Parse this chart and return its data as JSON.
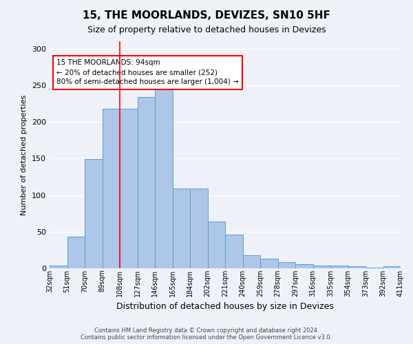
{
  "title": "15, THE MOORLANDS, DEVIZES, SN10 5HF",
  "subtitle": "Size of property relative to detached houses in Devizes",
  "xlabel": "Distribution of detached houses by size in Devizes",
  "ylabel": "Number of detached properties",
  "bar_labels": [
    "32sqm",
    "51sqm",
    "70sqm",
    "89sqm",
    "108sqm",
    "127sqm",
    "146sqm",
    "165sqm",
    "184sqm",
    "202sqm",
    "221sqm",
    "240sqm",
    "259sqm",
    "278sqm",
    "297sqm",
    "316sqm",
    "335sqm",
    "354sqm",
    "373sqm",
    "392sqm",
    "411sqm"
  ],
  "bar_values": [
    4,
    43,
    149,
    218,
    218,
    234,
    246,
    109,
    109,
    64,
    46,
    18,
    13,
    8,
    6,
    4,
    4,
    3,
    1,
    3
  ],
  "bar_color": "#aec6e8",
  "bar_edge_color": "#5b9bd5",
  "property_line_x": 3.5,
  "annotation_text": "15 THE MOORLANDS: 94sqm\n← 20% of detached houses are smaller (252)\n80% of semi-detached houses are larger (1,004) →",
  "annotation_box_color": "white",
  "annotation_box_edge_color": "red",
  "vline_color": "red",
  "footer_line1": "Contains HM Land Registry data © Crown copyright and database right 2024.",
  "footer_line2": "Contains public sector information licensed under the Open Government Licence v3.0.",
  "ylim": [
    0,
    310
  ],
  "background_color": "#eef2f8",
  "grid_color": "white",
  "title_fontsize": 11,
  "subtitle_fontsize": 9,
  "ylabel_fontsize": 8,
  "xlabel_fontsize": 9,
  "tick_fontsize": 7
}
